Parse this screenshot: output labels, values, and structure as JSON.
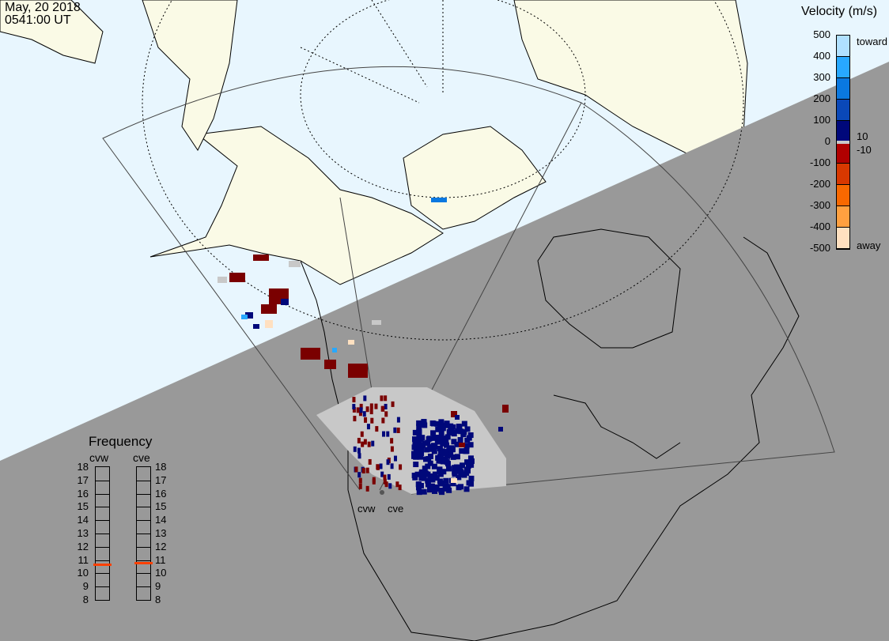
{
  "header": {
    "date": "May, 20 2018",
    "time": "0541:00 UT"
  },
  "colors": {
    "ocean_day": "#e8f6fe",
    "land_day": "#fafae6",
    "night": "#999999",
    "ground_scatter": "#c8c8c8"
  },
  "velocity_scale": {
    "title": "Velocity (m/s)",
    "ticks": [
      "500",
      "400",
      "300",
      "200",
      "100",
      "0",
      "-100",
      "-200",
      "-300",
      "-400",
      "-500"
    ],
    "inner_ticks": [
      "10",
      "-10"
    ],
    "toward_label": "toward",
    "away_label": "away",
    "colors": [
      "#b0e0ff",
      "#28a8ff",
      "#0a78e0",
      "#0a48b8",
      "#00087a",
      "#7a0000",
      "#b00000",
      "#d83800",
      "#f86800",
      "#ffa040",
      "#ffe0c0"
    ]
  },
  "frequency": {
    "title": "Frequency",
    "radars": [
      {
        "name": "cvw",
        "value_mhz": 10.7
      },
      {
        "name": "cve",
        "value_mhz": 10.8
      }
    ],
    "ticks": [
      "18",
      "17",
      "16",
      "15",
      "14",
      "13",
      "12",
      "11",
      "10",
      "9",
      "8"
    ],
    "range": [
      8,
      18
    ],
    "marker_color": "#ff4000"
  },
  "radar_sites": [
    {
      "name": "cvw"
    },
    {
      "name": "cve"
    }
  ]
}
